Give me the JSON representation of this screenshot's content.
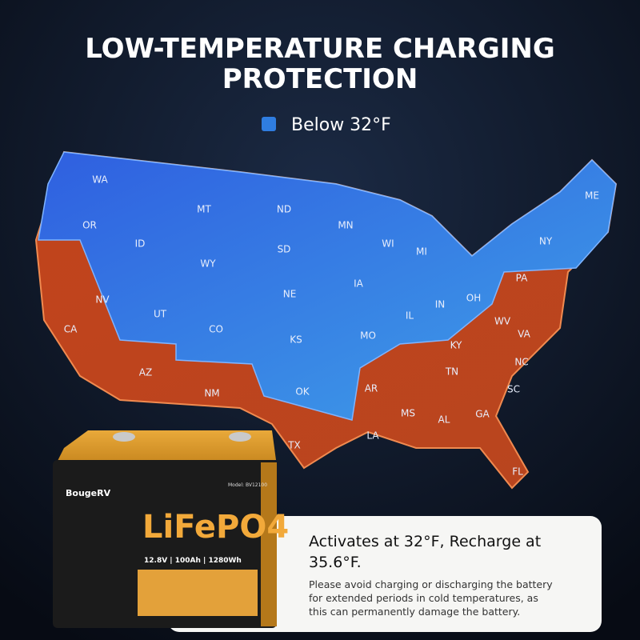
{
  "title_lines": [
    "LOW-TEMPERATURE CHARGING",
    "PROTECTION"
  ],
  "legend": {
    "label": "Below 32°F"
  },
  "map": {
    "states": [
      "WA",
      "OR",
      "MT",
      "ND",
      "MN",
      "ID",
      "SD",
      "WI",
      "MI",
      "NY",
      "ME",
      "WY",
      "IA",
      "NE",
      "PA",
      "NV",
      "UT",
      "IN",
      "OH",
      "IL",
      "CO",
      "KS",
      "MO",
      "WV",
      "VA",
      "CA",
      "KY",
      "NC",
      "TN",
      "AZ",
      "NM",
      "OK",
      "AR",
      "SC",
      "MS",
      "AL",
      "GA",
      "LA",
      "TX",
      "FL"
    ]
  },
  "battery": {
    "brand": "BougeRV",
    "model": "Model: BV12100",
    "chemistry": "LiFePO4",
    "specs": "12.8V | 100Ah | 1280Wh"
  },
  "info": {
    "heading_lines": [
      "Activates at 32°F, Recharge at",
      "35.6°F."
    ],
    "body_lines": [
      "Please avoid charging or discharging the battery",
      "for extended periods in cold temperatures, as",
      "this can permanently damage the battery."
    ]
  }
}
